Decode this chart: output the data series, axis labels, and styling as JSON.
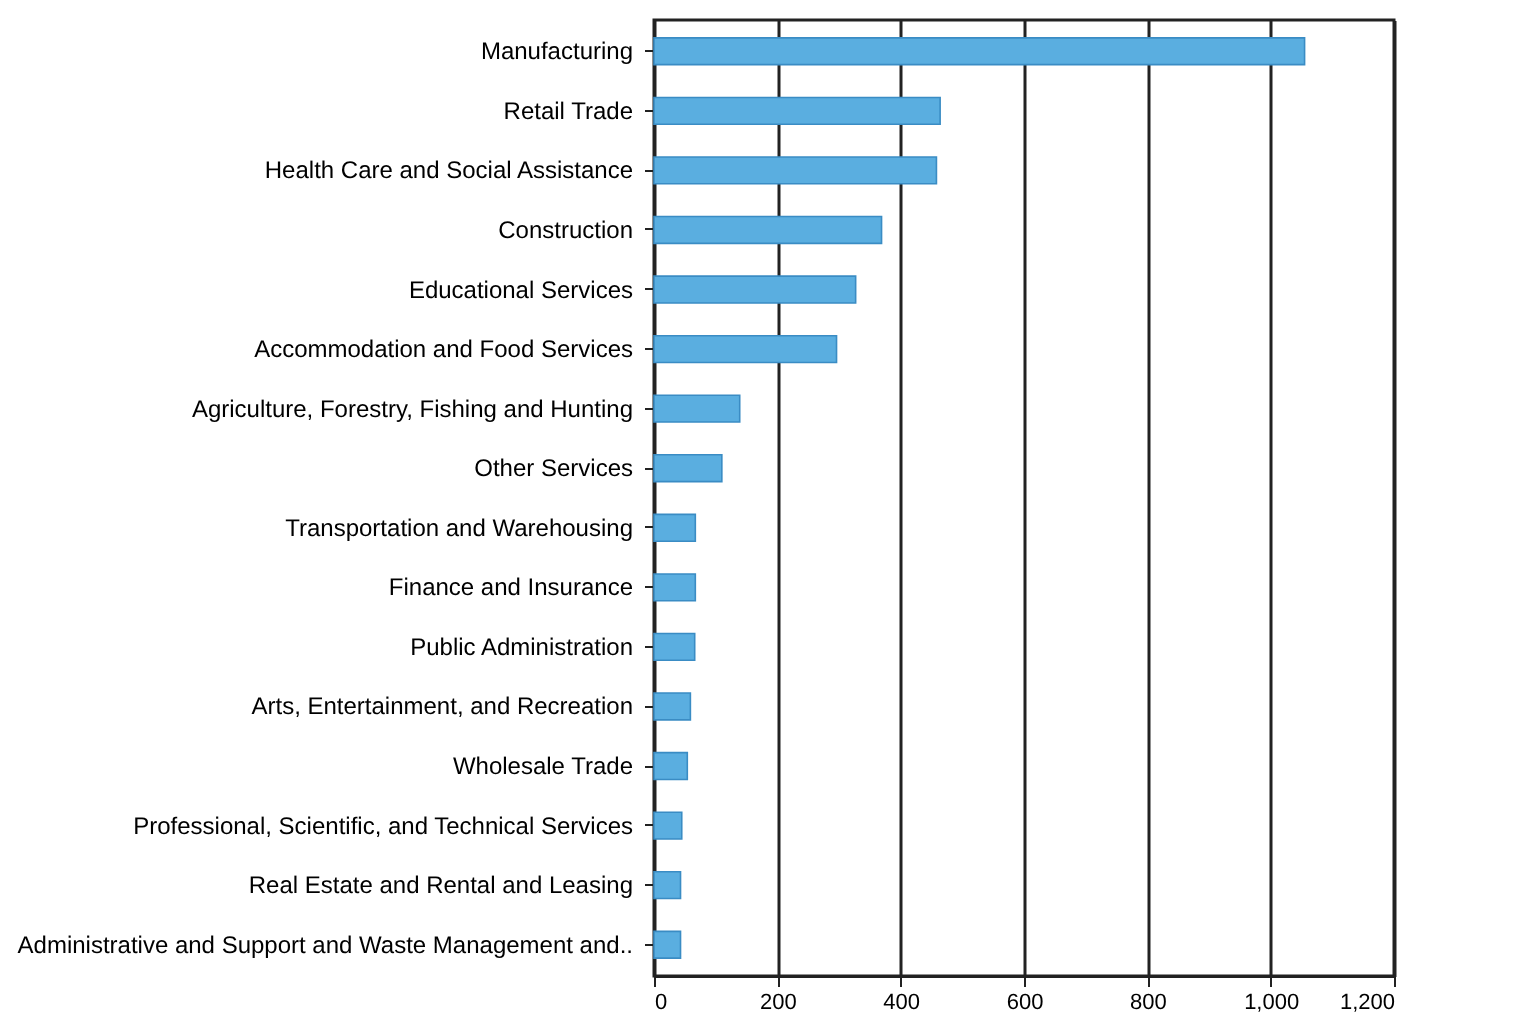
{
  "chart_data": {
    "type": "bar",
    "orientation": "horizontal",
    "categories": [
      "Manufacturing",
      "Retail Trade",
      "Health Care and Social Assistance",
      "Construction",
      "Educational Services",
      "Accommodation and Food Services",
      "Agriculture, Forestry, Fishing and Hunting",
      "Other Services",
      "Transportation and Warehousing",
      "Finance and Insurance",
      "Public Administration",
      "Arts, Entertainment, and Recreation",
      "Wholesale Trade",
      "Professional, Scientific, and Technical Services",
      "Real Estate and Rental and Leasing",
      "Administrative and Support and Waste Management and.."
    ],
    "values": [
      1055,
      464,
      458,
      369,
      327,
      296,
      139,
      110,
      67,
      67,
      66,
      59,
      54,
      45,
      43,
      43
    ],
    "color": "#5aaee0",
    "xlim": [
      0,
      1200
    ],
    "xticks": [
      0,
      200,
      400,
      600,
      800,
      {
        "value": 1000,
        "label": "1,000"
      },
      {
        "value": 1200,
        "label": "1,200"
      }
    ],
    "grid": "x"
  }
}
